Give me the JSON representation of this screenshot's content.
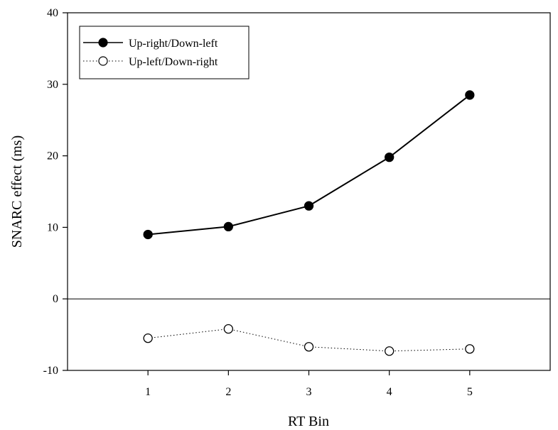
{
  "chart_data": {
    "type": "line",
    "xlabel": "RT Bin",
    "ylabel": "SNARC effect (ms)",
    "x": [
      1,
      2,
      3,
      4,
      5
    ],
    "xlim": [
      0,
      6
    ],
    "ylim": [
      -10,
      40
    ],
    "x_ticks": [
      1,
      2,
      3,
      4,
      5
    ],
    "y_ticks": [
      -10,
      0,
      10,
      20,
      30,
      40
    ],
    "zero_line": true,
    "grid": false,
    "legend_position": "top-left",
    "series": [
      {
        "name": "Up-right/Down-left",
        "values": [
          9.0,
          10.1,
          13.0,
          19.8,
          28.5
        ],
        "marker": "filled-circle",
        "line_style": "solid",
        "color": "#000000"
      },
      {
        "name": "Up-left/Down-right",
        "values": [
          -5.5,
          -4.2,
          -6.7,
          -7.3,
          -7.0
        ],
        "marker": "open-circle",
        "line_style": "dotted",
        "color": "#000000"
      }
    ]
  }
}
